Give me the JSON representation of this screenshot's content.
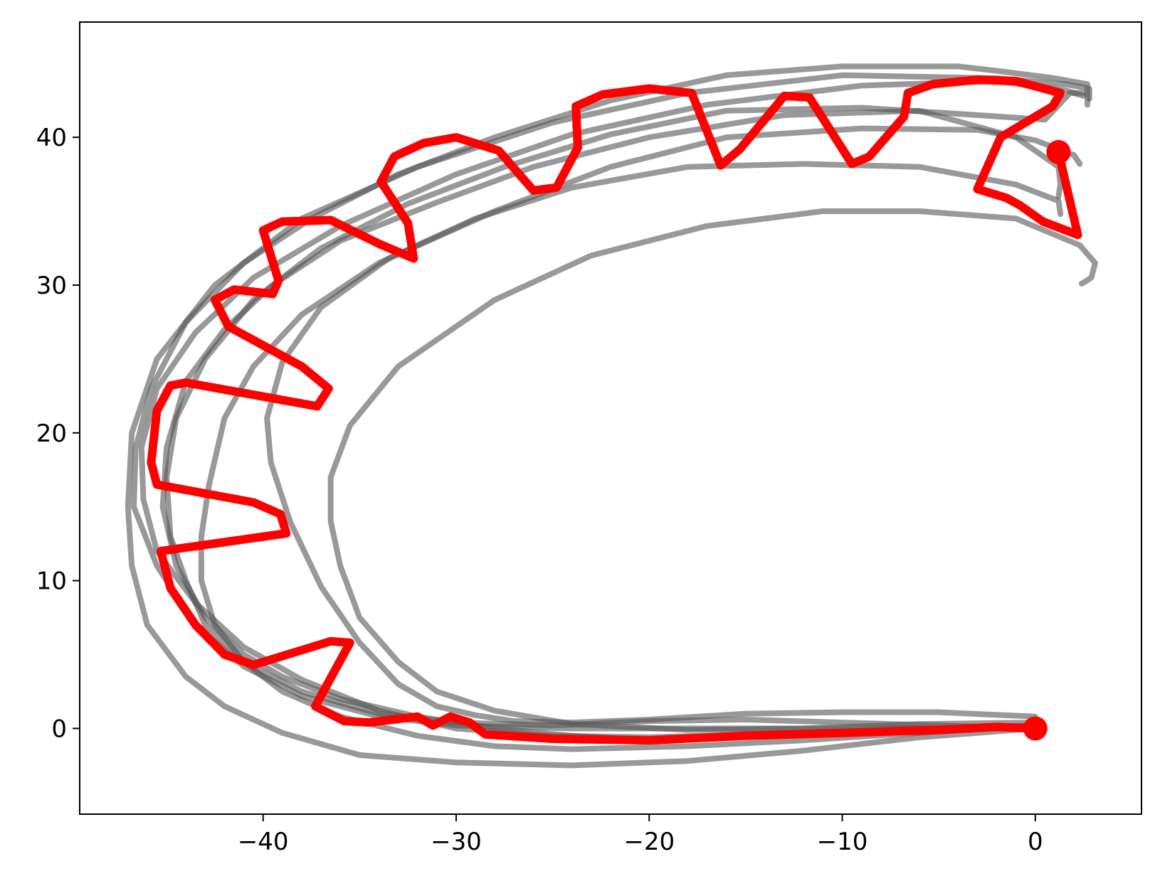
{
  "chart_data": {
    "type": "line",
    "title": "",
    "xlabel": "",
    "ylabel": "",
    "xlim": [
      -49.5,
      5.5
    ],
    "ylim": [
      -5.8,
      47.8
    ],
    "grid": false,
    "x_ticks": [
      -40,
      -30,
      -20,
      -10,
      0
    ],
    "x_tick_labels": [
      "−40",
      "−30",
      "−20",
      "−10",
      "0"
    ],
    "y_ticks": [
      0,
      10,
      20,
      30,
      40
    ],
    "y_tick_labels": [
      "0",
      "10",
      "20",
      "30",
      "40"
    ],
    "colors": {
      "reference": "#555555",
      "main": "#ff0000"
    },
    "reference_series": [
      {
        "points": [
          [
            0,
            0.8
          ],
          [
            -5,
            1.1
          ],
          [
            -10,
            1.1
          ],
          [
            -15,
            1.0
          ],
          [
            -20,
            0.6
          ],
          [
            -24,
            0.4
          ],
          [
            -27,
            0.5
          ],
          [
            -29,
            0.9
          ],
          [
            -31,
            1.5
          ],
          [
            -33,
            3.0
          ],
          [
            -35,
            5.8
          ],
          [
            -37,
            9.6
          ],
          [
            -38.6,
            14.0
          ],
          [
            -39.6,
            18.0
          ],
          [
            -39.8,
            21.0
          ],
          [
            -39,
            24.8
          ],
          [
            -37,
            28.5
          ],
          [
            -33.5,
            31.8
          ],
          [
            -29,
            34.5
          ],
          [
            -24,
            36.6
          ],
          [
            -18,
            38.0
          ],
          [
            -12,
            38.2
          ],
          [
            -6,
            38.0
          ],
          [
            -1,
            36.8
          ],
          [
            1.2,
            35.7
          ],
          [
            1.3,
            34.8
          ]
        ]
      },
      {
        "points": [
          [
            0,
            0.4
          ],
          [
            -6,
            0.3
          ],
          [
            -12,
            0.0
          ],
          [
            -18,
            -0.1
          ],
          [
            -24,
            0.3
          ],
          [
            -28,
            1.2
          ],
          [
            -31,
            2.5
          ],
          [
            -33,
            4.5
          ],
          [
            -35,
            7.5
          ],
          [
            -36,
            11.0
          ],
          [
            -36.5,
            14.0
          ],
          [
            -36.5,
            17.0
          ],
          [
            -35.5,
            20.5
          ],
          [
            -33,
            24.5
          ],
          [
            -28,
            29.0
          ],
          [
            -23,
            32.0
          ],
          [
            -17,
            34.0
          ],
          [
            -11,
            35.0
          ],
          [
            -6,
            35.0
          ],
          [
            -1,
            34.5
          ],
          [
            2.3,
            32.7
          ],
          [
            3.1,
            31.5
          ],
          [
            2.9,
            30.5
          ],
          [
            2.4,
            30.1
          ]
        ]
      },
      {
        "points": [
          [
            0,
            0.0
          ],
          [
            -6,
            -0.6
          ],
          [
            -12,
            -1.5
          ],
          [
            -18,
            -2.2
          ],
          [
            -24,
            -2.5
          ],
          [
            -30,
            -2.3
          ],
          [
            -35,
            -1.8
          ],
          [
            -39,
            -0.3
          ],
          [
            -42,
            1.5
          ],
          [
            -44,
            3.5
          ],
          [
            -46,
            7.0
          ],
          [
            -46.8,
            11.0
          ],
          [
            -47,
            15.0
          ],
          [
            -46.8,
            20.0
          ],
          [
            -45.5,
            25.0
          ],
          [
            -42.5,
            30.0
          ],
          [
            -38,
            34.5
          ],
          [
            -32,
            38.0
          ],
          [
            -25,
            41.0
          ],
          [
            -18,
            43.0
          ],
          [
            -10,
            44.2
          ],
          [
            -2,
            44.0
          ],
          [
            1.5,
            43.6
          ],
          [
            2.8,
            43.3
          ],
          [
            2.8,
            42.6
          ]
        ]
      },
      {
        "points": [
          [
            0,
            0.2
          ],
          [
            -6,
            -0.3
          ],
          [
            -12,
            -0.8
          ],
          [
            -18,
            -1.2
          ],
          [
            -24,
            -1.4
          ],
          [
            -28,
            -1.2
          ],
          [
            -32,
            -0.5
          ],
          [
            -36,
            0.8
          ],
          [
            -39,
            2.5
          ],
          [
            -41,
            4.5
          ],
          [
            -42.5,
            7.0
          ],
          [
            -43.2,
            10.0
          ],
          [
            -43.2,
            13.0
          ],
          [
            -42.8,
            16.5
          ],
          [
            -42,
            21.0
          ],
          [
            -40.5,
            24.5
          ],
          [
            -38,
            28.0
          ],
          [
            -34,
            31.5
          ],
          [
            -28,
            35.0
          ],
          [
            -22,
            38.0
          ],
          [
            -16,
            40.0
          ],
          [
            -9,
            40.6
          ],
          [
            -3,
            40.5
          ],
          [
            0,
            39.8
          ],
          [
            2.0,
            38.8
          ],
          [
            2.3,
            38.2
          ]
        ]
      },
      {
        "points": [
          [
            0,
            0.1
          ],
          [
            -4,
            -0.1
          ],
          [
            -8,
            -0.3
          ],
          [
            -12,
            -0.4
          ],
          [
            -16,
            -0.6
          ],
          [
            -20,
            -0.8
          ],
          [
            -24,
            -0.5
          ],
          [
            -28,
            0.0
          ],
          [
            -32,
            0.8
          ],
          [
            -36,
            2.0
          ],
          [
            -39,
            3.5
          ],
          [
            -41,
            5.0
          ],
          [
            -43,
            7.5
          ],
          [
            -44.5,
            11.0
          ],
          [
            -45.2,
            15.0
          ],
          [
            -45,
            19.0
          ],
          [
            -44,
            23.5
          ],
          [
            -42,
            27.0
          ],
          [
            -39.5,
            30.0
          ],
          [
            -36,
            33.0
          ],
          [
            -31,
            35.6
          ],
          [
            -26,
            38.0
          ],
          [
            -20,
            40.0
          ],
          [
            -13,
            41.5
          ],
          [
            -6,
            41.8
          ],
          [
            -1,
            40.0
          ],
          [
            1.2,
            38.0
          ],
          [
            1.3,
            36.8
          ],
          [
            1.2,
            36.0
          ]
        ]
      },
      {
        "points": [
          [
            0,
            0.2
          ],
          [
            -5,
            0.0
          ],
          [
            -10,
            -0.2
          ],
          [
            -15,
            -0.4
          ],
          [
            -20,
            -0.6
          ],
          [
            -25,
            -0.5
          ],
          [
            -30,
            0.0
          ],
          [
            -34,
            1.2
          ],
          [
            -38,
            3.3
          ],
          [
            -41,
            5.5
          ],
          [
            -43.5,
            8.5
          ],
          [
            -45.5,
            12.0
          ],
          [
            -46.2,
            15.5
          ],
          [
            -46.3,
            19.0
          ],
          [
            -45.5,
            23.0
          ],
          [
            -43.5,
            26.8
          ],
          [
            -40.5,
            30.5
          ],
          [
            -36,
            34.0
          ],
          [
            -30,
            37.5
          ],
          [
            -24,
            40.2
          ],
          [
            -17,
            42.2
          ],
          [
            -9,
            43.5
          ],
          [
            -2,
            43.8
          ],
          [
            1.5,
            43.2
          ],
          [
            2.5,
            42.8
          ]
        ]
      },
      {
        "points": [
          [
            0,
            0.0
          ],
          [
            -5,
            0.2
          ],
          [
            -10,
            0.4
          ],
          [
            -15,
            0.6
          ],
          [
            -20,
            0.5
          ],
          [
            -25,
            0.2
          ],
          [
            -30,
            0.4
          ],
          [
            -34,
            1.0
          ],
          [
            -38,
            2.5
          ],
          [
            -41,
            4.5
          ],
          [
            -43,
            7.0
          ],
          [
            -44,
            10.0
          ],
          [
            -44.8,
            13.0
          ],
          [
            -45,
            17.0
          ],
          [
            -44.5,
            21.0
          ],
          [
            -43,
            25.0
          ],
          [
            -40.5,
            29.0
          ],
          [
            -37,
            32.5
          ],
          [
            -32.5,
            35.5
          ],
          [
            -27.5,
            38.0
          ],
          [
            -22,
            40.2
          ],
          [
            -16,
            41.8
          ],
          [
            -9,
            42.0
          ],
          [
            -3,
            41.5
          ],
          [
            0.5,
            41.2
          ],
          [
            1.8,
            43.0
          ],
          [
            2.5,
            43.0
          ]
        ]
      },
      {
        "points": [
          [
            0,
            0.0
          ],
          [
            -6,
            0.0
          ],
          [
            -12,
            0.0
          ],
          [
            -18,
            0.0
          ],
          [
            -24,
            0.0
          ],
          [
            -30,
            0.2
          ],
          [
            -34,
            0.8
          ],
          [
            -38,
            2.2
          ],
          [
            -41,
            4.2
          ],
          [
            -43.5,
            7.0
          ],
          [
            -45.5,
            11.0
          ],
          [
            -46.7,
            15.0
          ],
          [
            -46.6,
            19.0
          ],
          [
            -45.8,
            23.0
          ],
          [
            -44,
            27.5
          ],
          [
            -41,
            31.5
          ],
          [
            -37.5,
            34.5
          ],
          [
            -33,
            37.5
          ],
          [
            -28,
            40.0
          ],
          [
            -22,
            42.5
          ],
          [
            -16,
            44.2
          ],
          [
            -10,
            44.8
          ],
          [
            -4,
            44.8
          ],
          [
            -2,
            44.5
          ],
          [
            1,
            44.0
          ],
          [
            2.7,
            43.6
          ],
          [
            2.7,
            42.2
          ]
        ]
      }
    ],
    "main_series": {
      "points": [
        [
          0,
          0
        ],
        [
          -2,
          0.1
        ],
        [
          -5,
          -0.1
        ],
        [
          -10,
          -0.3
        ],
        [
          -15,
          -0.5
        ],
        [
          -20,
          -0.8
        ],
        [
          -25,
          -0.7
        ],
        [
          -28.5,
          -0.4
        ],
        [
          -29.3,
          0.4
        ],
        [
          -30.3,
          0.8
        ],
        [
          -31.2,
          0.2
        ],
        [
          -32,
          0.8
        ],
        [
          -34.5,
          0.4
        ],
        [
          -35.8,
          0.5
        ],
        [
          -37.3,
          1.5
        ],
        [
          -35.5,
          5.8
        ],
        [
          -36.5,
          5.9
        ],
        [
          -40.5,
          4.3
        ],
        [
          -42,
          5.0
        ],
        [
          -43.5,
          7.0
        ],
        [
          -44.8,
          9.5
        ],
        [
          -45.3,
          12.0
        ],
        [
          -38.8,
          13.2
        ],
        [
          -39.1,
          14.5
        ],
        [
          -40.5,
          15.3
        ],
        [
          -45.5,
          16.5
        ],
        [
          -45.8,
          18.0
        ],
        [
          -45.5,
          21.5
        ],
        [
          -44.8,
          23.2
        ],
        [
          -44,
          23.4
        ],
        [
          -37.2,
          21.8
        ],
        [
          -36.6,
          23.0
        ],
        [
          -38,
          24.5
        ],
        [
          -41.8,
          27.2
        ],
        [
          -42.5,
          29.0
        ],
        [
          -41.5,
          29.7
        ],
        [
          -39.5,
          29.4
        ],
        [
          -39.2,
          30.3
        ],
        [
          -40,
          33.7
        ],
        [
          -39,
          34.3
        ],
        [
          -36.5,
          34.4
        ],
        [
          -34,
          32.8
        ],
        [
          -32.2,
          31.8
        ],
        [
          -32.5,
          34.2
        ],
        [
          -33.9,
          37.0
        ],
        [
          -33.2,
          38.7
        ],
        [
          -31.7,
          39.6
        ],
        [
          -30,
          40.0
        ],
        [
          -27.8,
          39.1
        ],
        [
          -26,
          36.4
        ],
        [
          -24.8,
          36.6
        ],
        [
          -23.7,
          39.3
        ],
        [
          -23.8,
          42.1
        ],
        [
          -22.4,
          42.9
        ],
        [
          -20,
          43.3
        ],
        [
          -17.8,
          43.0
        ],
        [
          -16.3,
          38.1
        ],
        [
          -15.3,
          39.2
        ],
        [
          -13,
          42.8
        ],
        [
          -11.7,
          42.7
        ],
        [
          -9.5,
          38.2
        ],
        [
          -8.6,
          38.7
        ],
        [
          -6.8,
          41.4
        ],
        [
          -6.6,
          43.0
        ],
        [
          -5.3,
          43.6
        ],
        [
          -3,
          43.9
        ],
        [
          -1,
          43.8
        ],
        [
          1.3,
          43.0
        ],
        [
          0.9,
          42.1
        ],
        [
          -1.8,
          40.0
        ],
        [
          -3,
          36.5
        ],
        [
          -1.5,
          35.9
        ],
        [
          -0.8,
          35.4
        ],
        [
          0.4,
          34.3
        ],
        [
          2.2,
          33.4
        ],
        [
          1.2,
          39.0
        ]
      ],
      "start_marker": [
        0,
        0
      ],
      "end_marker": [
        1.2,
        39.0
      ]
    }
  }
}
